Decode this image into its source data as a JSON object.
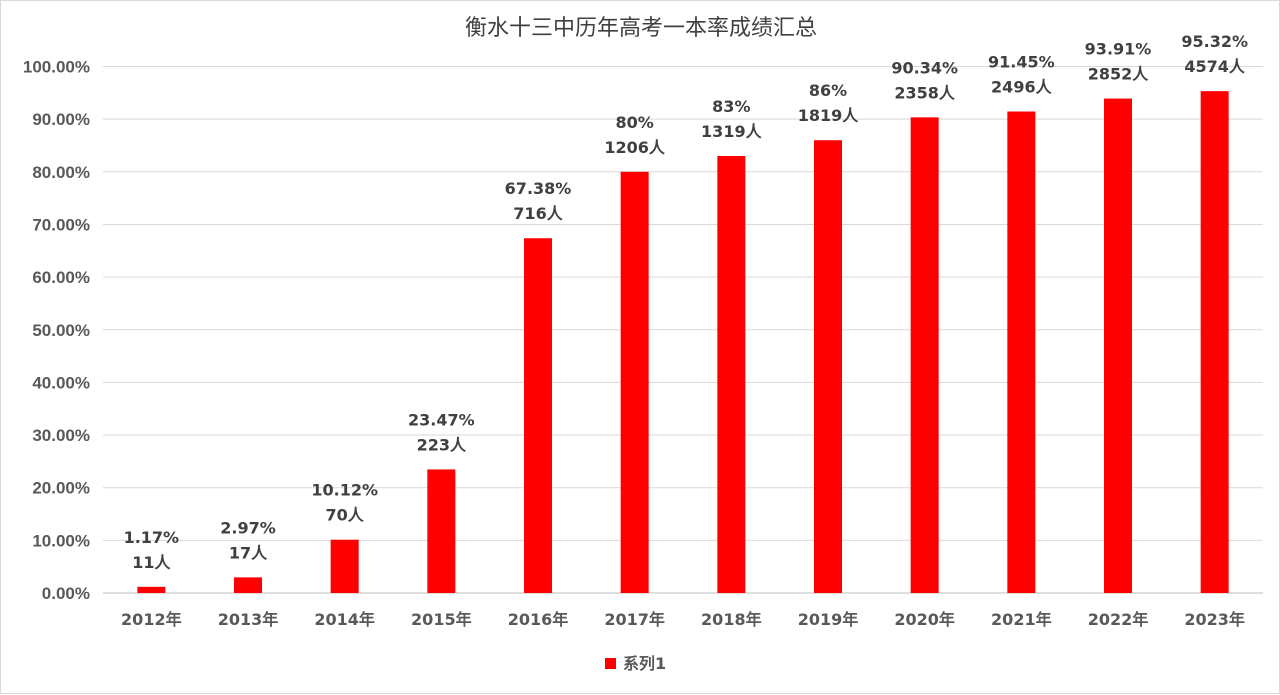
{
  "chart_data": {
    "type": "bar",
    "title": "衡水十三中历年高考一本率成绩汇总",
    "categories": [
      "2012年",
      "2013年",
      "2014年",
      "2015年",
      "2016年",
      "2017年",
      "2018年",
      "2019年",
      "2020年",
      "2021年",
      "2022年",
      "2023年"
    ],
    "series": [
      {
        "name": "系列1",
        "color": "#ff0000",
        "values": [
          1.17,
          2.97,
          10.12,
          23.47,
          67.38,
          80,
          83,
          86,
          90.34,
          91.45,
          93.91,
          95.32
        ],
        "rate_labels": [
          "1.17%",
          "2.97%",
          "10.12%",
          "23.47%",
          "67.38%",
          "80%",
          "83%",
          "86%",
          "90.34%",
          "91.45%",
          "93.91%",
          "95.32%"
        ],
        "count_labels": [
          "11人",
          "17人",
          "70人",
          "223人",
          "716人",
          "1206人",
          "1319人",
          "1819人",
          "2358人",
          "2496人",
          "2852人",
          "4574人"
        ]
      }
    ],
    "ylim": [
      0,
      100
    ],
    "y_ticks": [
      "0.00%",
      "10.00%",
      "20.00%",
      "30.00%",
      "40.00%",
      "50.00%",
      "60.00%",
      "70.00%",
      "80.00%",
      "90.00%",
      "100.00%"
    ],
    "grid": true,
    "legend": "bottom-center"
  }
}
